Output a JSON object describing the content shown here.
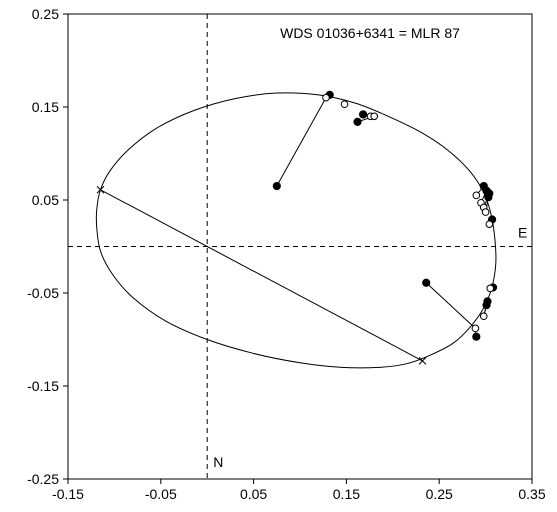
{
  "chart_data": {
    "type": "scatter",
    "title": "WDS 01036+6341 = MLR 87",
    "xlabel": "",
    "ylabel": "",
    "xlim": [
      -0.15,
      0.35
    ],
    "ylim": [
      -0.25,
      0.25
    ],
    "x_ticks": [
      "-0.15",
      "-0.05",
      "0.05",
      "0.15",
      "0.25",
      "0.35"
    ],
    "y_ticks": [
      "0.25",
      "0.15",
      "0.05",
      "-0.05",
      "-0.15",
      "-0.25"
    ],
    "grid": false,
    "legend": "none",
    "crosshair": {
      "x": 0.0,
      "y": 0.0,
      "x_axis_label": "E",
      "y_axis_label": "N"
    },
    "orbit_ellipse": {
      "points": [
        [
          -0.115,
          0.061
        ],
        [
          -0.105,
          0.081
        ],
        [
          -0.085,
          0.104
        ],
        [
          -0.055,
          0.127
        ],
        [
          -0.015,
          0.146
        ],
        [
          0.03,
          0.159
        ],
        [
          0.075,
          0.165
        ],
        [
          0.12,
          0.163
        ],
        [
          0.16,
          0.154
        ],
        [
          0.195,
          0.14
        ],
        [
          0.23,
          0.123
        ],
        [
          0.26,
          0.103
        ],
        [
          0.283,
          0.081
        ],
        [
          0.298,
          0.058
        ],
        [
          0.306,
          0.034
        ],
        [
          0.31,
          0.008
        ],
        [
          0.311,
          -0.018
        ],
        [
          0.307,
          -0.043
        ],
        [
          0.298,
          -0.066
        ],
        [
          0.283,
          -0.087
        ],
        [
          0.265,
          -0.104
        ],
        [
          0.24,
          -0.117
        ],
        [
          0.215,
          -0.126
        ],
        [
          0.185,
          -0.13
        ],
        [
          0.145,
          -0.13
        ],
        [
          0.1,
          -0.125
        ],
        [
          0.05,
          -0.115
        ],
        [
          0.0,
          -0.1
        ],
        [
          -0.045,
          -0.08
        ],
        [
          -0.08,
          -0.055
        ],
        [
          -0.102,
          -0.03
        ],
        [
          -0.115,
          -0.005
        ],
        [
          -0.119,
          0.02
        ],
        [
          -0.119,
          0.04
        ],
        [
          -0.115,
          0.061
        ]
      ]
    },
    "line_of_nodes": [
      [
        -0.115,
        0.061
      ],
      [
        0.232,
        -0.123
      ]
    ],
    "node_markers": [
      [
        -0.115,
        0.061
      ],
      [
        0.232,
        -0.123
      ]
    ],
    "series": [
      {
        "name": "",
        "marker": "filled-circle",
        "points": [
          [
            0.132,
            0.163
          ],
          [
            0.168,
            0.142
          ],
          [
            0.162,
            0.134
          ],
          [
            0.075,
            0.065
          ],
          [
            0.298,
            0.065
          ],
          [
            0.301,
            0.06
          ],
          [
            0.304,
            0.057
          ],
          [
            0.303,
            0.053
          ],
          [
            0.307,
            0.029
          ],
          [
            0.236,
            -0.039
          ],
          [
            0.308,
            -0.044
          ],
          [
            0.302,
            -0.059
          ],
          [
            0.301,
            -0.063
          ],
          [
            0.29,
            -0.097
          ]
        ]
      },
      {
        "name": "",
        "marker": "open-circle",
        "points": [
          [
            0.128,
            0.16
          ],
          [
            0.148,
            0.153
          ],
          [
            0.176,
            0.14
          ],
          [
            0.18,
            0.14
          ],
          [
            0.29,
            0.055
          ],
          [
            0.295,
            0.047
          ],
          [
            0.298,
            0.042
          ],
          [
            0.3,
            0.037
          ],
          [
            0.304,
            0.024
          ],
          [
            0.305,
            -0.045
          ],
          [
            0.298,
            -0.075
          ],
          [
            0.289,
            -0.088
          ]
        ]
      }
    ],
    "residual_lines": [
      [
        [
          0.132,
          0.163
        ],
        [
          0.128,
          0.16
        ]
      ],
      [
        [
          0.168,
          0.142
        ],
        [
          0.176,
          0.14
        ]
      ],
      [
        [
          0.162,
          0.134
        ],
        [
          0.18,
          0.14
        ]
      ],
      [
        [
          0.075,
          0.065
        ],
        [
          0.128,
          0.16
        ]
      ],
      [
        [
          0.298,
          0.065
        ],
        [
          0.29,
          0.055
        ]
      ],
      [
        [
          0.301,
          0.06
        ],
        [
          0.295,
          0.047
        ]
      ],
      [
        [
          0.304,
          0.057
        ],
        [
          0.298,
          0.042
        ]
      ],
      [
        [
          0.303,
          0.053
        ],
        [
          0.3,
          0.037
        ]
      ],
      [
        [
          0.307,
          0.029
        ],
        [
          0.304,
          0.024
        ]
      ],
      [
        [
          0.236,
          -0.039
        ],
        [
          0.289,
          -0.088
        ]
      ],
      [
        [
          0.308,
          -0.044
        ],
        [
          0.305,
          -0.045
        ]
      ],
      [
        [
          0.302,
          -0.059
        ],
        [
          0.298,
          -0.075
        ]
      ],
      [
        [
          0.301,
          -0.063
        ],
        [
          0.298,
          -0.075
        ]
      ],
      [
        [
          0.29,
          -0.097
        ],
        [
          0.289,
          -0.088
        ]
      ]
    ]
  }
}
